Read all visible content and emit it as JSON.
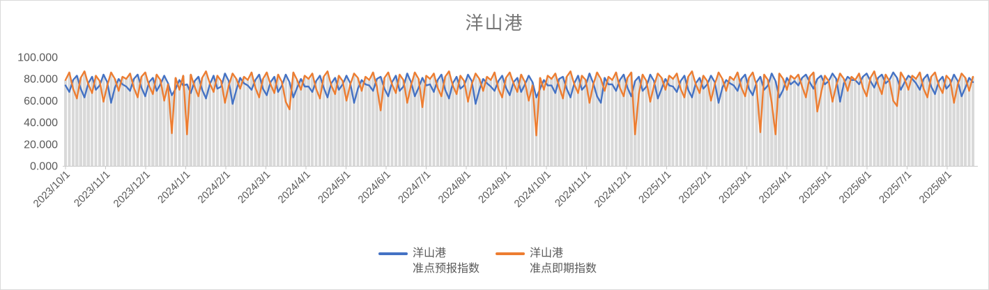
{
  "chart_data": {
    "type": "line",
    "title": "洋山港",
    "title_color": "#757575",
    "label_color": "#595959",
    "axis_color": "#c9c9c9",
    "bar_color": "#d9d9d9",
    "grid": false,
    "legend_position": "bottom",
    "ylim": [
      0,
      100
    ],
    "y_tick_values": [
      0,
      20,
      40,
      60,
      80,
      100
    ],
    "y_tick_labels": [
      "0.000",
      "20.000",
      "40.000",
      "60.000",
      "80.000",
      "100.000"
    ],
    "x_tick_labels": [
      "2023/10/1",
      "2023/11/1",
      "2023/12/1",
      "2024/1/1",
      "2024/2/1",
      "2024/3/1",
      "2024/4/1",
      "2024/5/1",
      "2024/6/1",
      "2024/7/1",
      "2024/8/1",
      "2024/9/1",
      "2024/10/1",
      "2024/11/1",
      "2024/12/1",
      "2025/1/1",
      "2025/2/1",
      "2025/3/1",
      "2025/4/1",
      "2025/5/1",
      "2025/6/1",
      "2025/7/1",
      "2025/8/1"
    ],
    "x_range": {
      "start": "2023/10/1",
      "end": "2025/8/14",
      "points": 240
    },
    "background_bars": {
      "note": "gray columns reach the upper envelope of the two lines",
      "derive": "max"
    },
    "series": [
      {
        "name": "洋山港准点预报指数",
        "legend_lines": [
          "洋山港",
          "准点预报指数"
        ],
        "color": "#4472C4",
        "values": [
          74,
          68,
          79,
          83,
          71,
          63,
          76,
          82,
          70,
          74,
          84,
          77,
          58,
          72,
          80,
          75,
          73,
          69,
          80,
          84,
          72,
          64,
          77,
          81,
          69,
          75,
          83,
          76,
          65,
          71,
          79,
          74,
          75,
          67,
          78,
          82,
          70,
          62,
          75,
          83,
          71,
          73,
          85,
          78,
          57,
          70,
          81,
          76,
          74,
          70,
          79,
          84,
          71,
          65,
          77,
          82,
          68,
          74,
          84,
          77,
          63,
          72,
          80,
          73,
          73,
          68,
          78,
          83,
          72,
          63,
          76,
          81,
          70,
          75,
          83,
          76,
          58,
          71,
          79,
          75,
          74,
          69,
          80,
          82,
          71,
          64,
          77,
          83,
          69,
          73,
          85,
          77,
          64,
          72,
          81,
          74,
          75,
          68,
          79,
          84,
          70,
          62,
          76,
          82,
          71,
          74,
          84,
          78,
          57,
          70,
          80,
          76,
          73,
          69,
          78,
          83,
          72,
          65,
          77,
          81,
          68,
          75,
          83,
          77,
          63,
          71,
          79,
          74,
          74,
          67,
          80,
          82,
          71,
          63,
          76,
          83,
          70,
          74,
          85,
          76,
          64,
          58,
          81,
          75,
          75,
          69,
          79,
          84,
          72,
          64,
          78,
          82,
          69,
          73,
          84,
          78,
          62,
          71,
          80,
          74,
          73,
          68,
          78,
          83,
          70,
          63,
          76,
          81,
          71,
          75,
          83,
          77,
          58,
          72,
          79,
          76,
          74,
          69,
          80,
          84,
          71,
          65,
          77,
          82,
          70,
          74,
          85,
          78,
          63,
          70,
          81,
          75,
          78,
          74,
          81,
          84,
          77,
          71,
          80,
          83,
          75,
          78,
          85,
          80,
          59,
          76,
          82,
          79,
          79,
          75,
          82,
          85,
          78,
          72,
          81,
          84,
          76,
          79,
          86,
          81,
          70,
          77,
          83,
          80,
          76,
          70,
          80,
          84,
          73,
          66,
          78,
          82,
          71,
          75,
          84,
          78,
          64,
          72,
          81,
          77
        ]
      },
      {
        "name": "洋山港准点即期指数",
        "legend_lines": [
          "洋山港",
          "准点即期指数"
        ],
        "color": "#ED7D31",
        "values": [
          79,
          86,
          71,
          62,
          81,
          87,
          75,
          67,
          83,
          78,
          59,
          74,
          86,
          80,
          69,
          82,
          80,
          85,
          72,
          63,
          82,
          86,
          74,
          66,
          84,
          79,
          60,
          75,
          30,
          81,
          70,
          83,
          29,
          84,
          73,
          64,
          81,
          87,
          76,
          68,
          83,
          78,
          58,
          74,
          85,
          80,
          71,
          82,
          79,
          86,
          72,
          63,
          80,
          86,
          75,
          67,
          84,
          77,
          59,
          52,
          86,
          79,
          70,
          83,
          80,
          85,
          71,
          62,
          82,
          87,
          74,
          66,
          83,
          78,
          60,
          75,
          85,
          81,
          69,
          82,
          79,
          86,
          73,
          51,
          81,
          86,
          75,
          67,
          84,
          79,
          58,
          74,
          86,
          80,
          54,
          83,
          80,
          85,
          72,
          64,
          82,
          87,
          74,
          66,
          83,
          78,
          59,
          75,
          85,
          80,
          69,
          82,
          79,
          86,
          71,
          63,
          81,
          86,
          76,
          68,
          84,
          77,
          60,
          74,
          28,
          81,
          70,
          83,
          80,
          85,
          73,
          62,
          82,
          87,
          75,
          67,
          83,
          79,
          58,
          75,
          86,
          80,
          69,
          82,
          79,
          86,
          72,
          64,
          81,
          86,
          29,
          66,
          84,
          78,
          59,
          74,
          85,
          81,
          70,
          83,
          80,
          85,
          71,
          63,
          82,
          87,
          75,
          67,
          83,
          78,
          60,
          75,
          86,
          80,
          69,
          82,
          79,
          86,
          72,
          64,
          81,
          86,
          74,
          31,
          84,
          79,
          58,
          29,
          85,
          80,
          70,
          83,
          80,
          84,
          73,
          63,
          82,
          86,
          50,
          67,
          83,
          78,
          59,
          74,
          85,
          80,
          69,
          82,
          79,
          85,
          72,
          64,
          81,
          87,
          75,
          66,
          84,
          78,
          60,
          55,
          86,
          80,
          70,
          83,
          80,
          86,
          71,
          63,
          82,
          86,
          74,
          67,
          83,
          79,
          58,
          75,
          85,
          81,
          69,
          82
        ]
      }
    ]
  }
}
